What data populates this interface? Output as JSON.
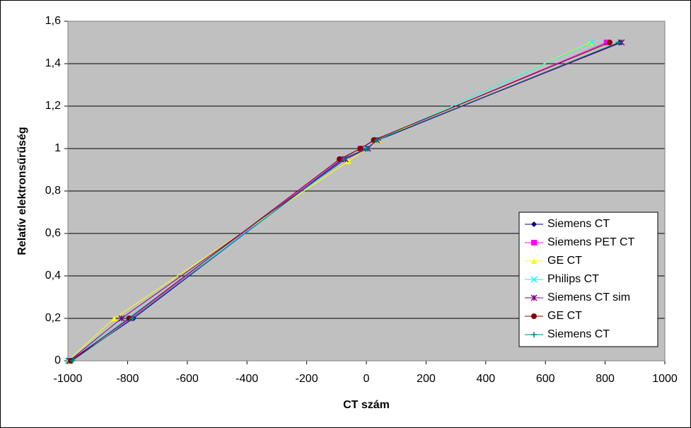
{
  "chart_data": {
    "type": "scatter",
    "x_label": "CT szám",
    "y_label": "Relatív elektronsűrűség",
    "xlim": [
      -1000,
      1000
    ],
    "xticks": [
      -1000,
      -800,
      -600,
      -400,
      -200,
      0,
      200,
      400,
      600,
      800,
      1000
    ],
    "ylim": [
      0,
      1.6
    ],
    "yticks": [
      0,
      {
        "value": 0.2,
        "label": "0,2"
      },
      {
        "value": 0.4,
        "label": "0,4"
      },
      {
        "value": 0.6,
        "label": "0,6"
      },
      {
        "value": 0.8,
        "label": "0,8"
      },
      1,
      {
        "value": 1.2,
        "label": "1,2"
      },
      {
        "value": 1.4,
        "label": "1,4"
      },
      {
        "value": 1.6,
        "label": "1,6"
      }
    ],
    "grid": true,
    "legend": "lower right",
    "background": "#c0c0c0",
    "series": [
      {
        "name": "Siemens CT",
        "color": "#000080",
        "marker": "diamond",
        "x": [
          -990,
          -780,
          -80,
          0,
          40,
          850
        ],
        "values": [
          0,
          0.2,
          0.95,
          1.0,
          1.04,
          1.5
        ]
      },
      {
        "name": "Siemens PET CT",
        "color": "#ff00ff",
        "marker": "square",
        "x": [
          -995,
          -790,
          -85,
          -20,
          30,
          805
        ],
        "values": [
          0,
          0.2,
          0.95,
          1.0,
          1.04,
          1.5
        ]
      },
      {
        "name": "GE CT",
        "color": "#ffff00",
        "marker": "triangle",
        "x": [
          -1000,
          -845,
          -60,
          0,
          40,
          750
        ],
        "values": [
          0,
          0.2,
          0.94,
          1.0,
          1.04,
          1.5
        ]
      },
      {
        "name": "Philips CT",
        "color": "#00ffff",
        "marker": "x",
        "x": [
          -1000,
          -800,
          -70,
          0,
          35,
          755
        ],
        "values": [
          0,
          0.2,
          0.95,
          1.0,
          1.04,
          1.5
        ]
      },
      {
        "name": "Siemens CT sim",
        "color": "#800080",
        "marker": "star",
        "x": [
          -995,
          -820,
          -70,
          5,
          35,
          855
        ],
        "values": [
          0,
          0.2,
          0.95,
          1.0,
          1.04,
          1.5
        ]
      },
      {
        "name": "GE CT",
        "color": "#800000",
        "marker": "circle",
        "x": [
          -990,
          -795,
          -90,
          -20,
          25,
          815
        ],
        "values": [
          0,
          0.2,
          0.95,
          1.0,
          1.04,
          1.5
        ]
      },
      {
        "name": "Siemens CT",
        "color": "#008080",
        "marker": "plus",
        "x": [
          -985,
          -785,
          -75,
          0,
          35,
          845
        ],
        "values": [
          0,
          0.2,
          0.95,
          1.0,
          1.04,
          1.5
        ]
      }
    ]
  }
}
